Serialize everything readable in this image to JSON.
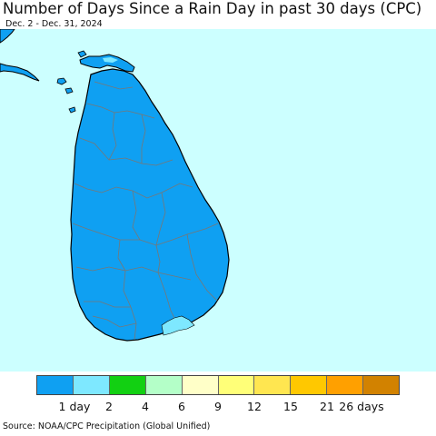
{
  "title": "Number of Days Since a Rain Day in past 30 days (CPC)",
  "date_range": "Dec. 2 - Dec. 31, 2024",
  "source": "Source: NOAA/CPC Precipitation (Global Unified)",
  "colors": {
    "ocean": "#ccffff",
    "land_primary": "#0fa0f2",
    "land_secondary": "#7ee8ff",
    "border": "#777777",
    "coast": "#000000"
  },
  "legend": {
    "swatches": [
      "#0fa0f2",
      "#7ee8ff",
      "#12d012",
      "#b4ffc8",
      "#ffffc8",
      "#ffff78",
      "#ffe650",
      "#ffc800",
      "#ffa000",
      "#d28200"
    ],
    "labels": [
      "1 day",
      "2",
      "4",
      "6",
      "9",
      "12",
      "15",
      "21",
      "26 days"
    ]
  },
  "map": {
    "region": "Sri Lanka",
    "predominant_class": "1 day",
    "secondary_class": "2"
  }
}
